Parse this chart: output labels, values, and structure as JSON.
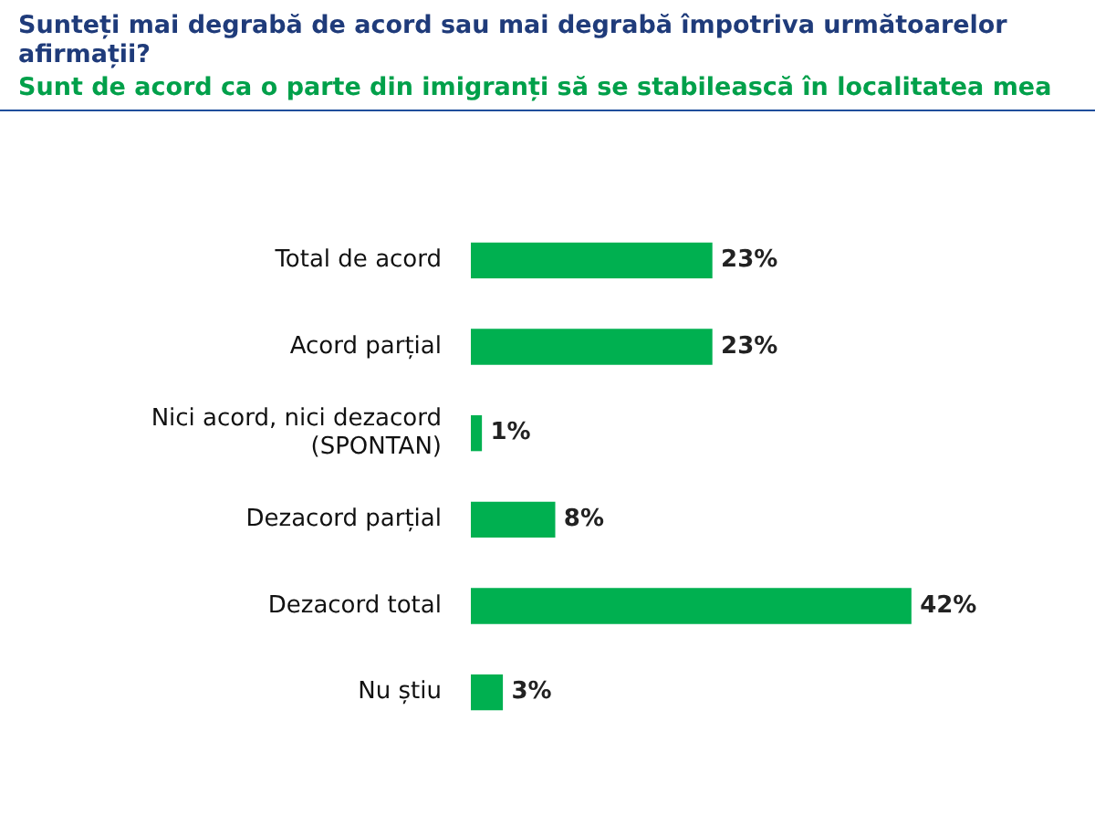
{
  "chart_data": {
    "type": "bar",
    "orientation": "horizontal",
    "title": "Sunteți mai degrabă de acord sau mai degrabă împotriva următoarelor afirmații?",
    "subtitle": "Sunt de acord ca o parte din imigranți să se stabilească în localitatea mea",
    "categories": [
      "Total de acord",
      "Acord parțial",
      "Nici acord, nici dezacord (SPONTAN)",
      "Dezacord parțial",
      "Dezacord total",
      "Nu știu"
    ],
    "values": [
      23,
      23,
      1,
      8,
      42,
      3
    ],
    "value_labels": [
      "23%",
      "23%",
      "1%",
      "8%",
      "42%",
      "3%"
    ],
    "color": "#00b050",
    "relative": false,
    "grid": false,
    "legend": false
  }
}
